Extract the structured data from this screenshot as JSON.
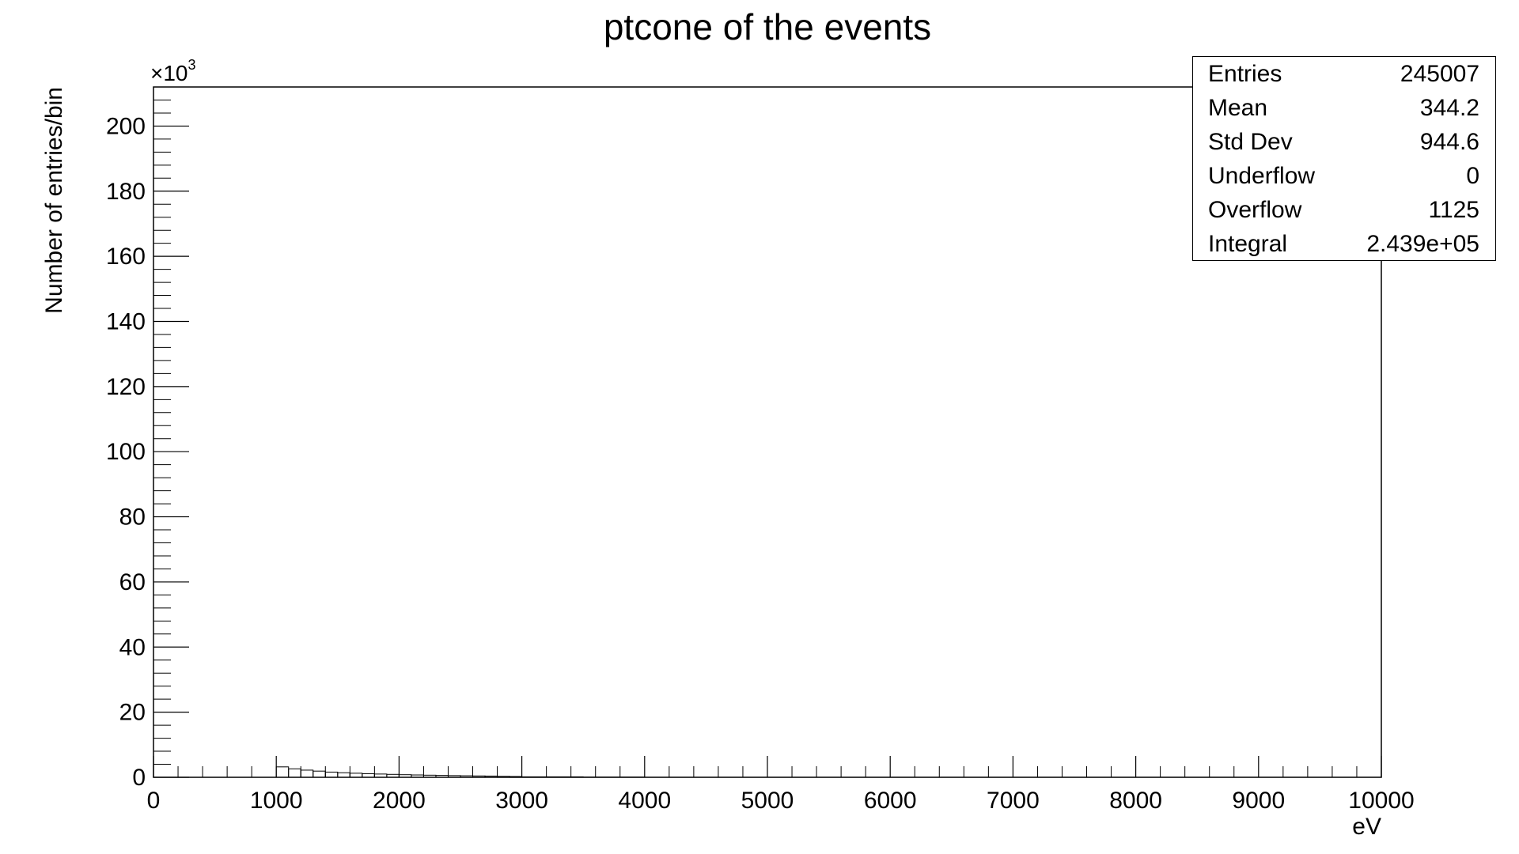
{
  "chart_data": {
    "type": "bar",
    "title": "ptcone of the events",
    "xlabel": "eV",
    "ylabel": "Number of entries/bin",
    "y_multiplier_label": "×10",
    "y_multiplier_exponent": "3",
    "xlim": [
      0,
      10000
    ],
    "ylim": [
      0,
      212
    ],
    "x_ticks": [
      "0",
      "1000",
      "2000",
      "3000",
      "4000",
      "5000",
      "6000",
      "7000",
      "8000",
      "9000",
      "10000"
    ],
    "y_ticks": [
      "0",
      "20",
      "40",
      "60",
      "80",
      "100",
      "120",
      "140",
      "160",
      "180",
      "200"
    ],
    "grid": false,
    "bins": [
      {
        "x0": 0,
        "x1": 1000,
        "value": 0
      },
      {
        "x0": 1000,
        "x1": 1100,
        "value": 3.2
      },
      {
        "x0": 1100,
        "x1": 1200,
        "value": 2.6
      },
      {
        "x0": 1200,
        "x1": 1300,
        "value": 2.2
      },
      {
        "x0": 1300,
        "x1": 1400,
        "value": 1.9
      },
      {
        "x0": 1400,
        "x1": 1500,
        "value": 1.6
      },
      {
        "x0": 1500,
        "x1": 1600,
        "value": 1.4
      },
      {
        "x0": 1600,
        "x1": 1700,
        "value": 1.25
      },
      {
        "x0": 1700,
        "x1": 1800,
        "value": 1.1
      },
      {
        "x0": 1800,
        "x1": 1900,
        "value": 1.0
      },
      {
        "x0": 1900,
        "x1": 2000,
        "value": 0.9
      },
      {
        "x0": 2000,
        "x1": 2100,
        "value": 0.8
      },
      {
        "x0": 2100,
        "x1": 2200,
        "value": 0.72
      },
      {
        "x0": 2200,
        "x1": 2300,
        "value": 0.65
      },
      {
        "x0": 2300,
        "x1": 2400,
        "value": 0.58
      },
      {
        "x0": 2400,
        "x1": 2500,
        "value": 0.52
      },
      {
        "x0": 2500,
        "x1": 2600,
        "value": 0.47
      },
      {
        "x0": 2600,
        "x1": 2700,
        "value": 0.42
      },
      {
        "x0": 2700,
        "x1": 2800,
        "value": 0.38
      },
      {
        "x0": 2800,
        "x1": 2900,
        "value": 0.3
      },
      {
        "x0": 2900,
        "x1": 3000,
        "value": 0.25
      },
      {
        "x0": 3000,
        "x1": 3500,
        "value": 0.15
      },
      {
        "x0": 3500,
        "x1": 4000,
        "value": 0.08
      },
      {
        "x0": 4000,
        "x1": 10000,
        "value": 0.02
      }
    ],
    "stats": [
      {
        "label": "Entries",
        "value": "245007"
      },
      {
        "label": "Mean",
        "value": "344.2"
      },
      {
        "label": "Std Dev",
        "value": "944.6"
      },
      {
        "label": "Underflow",
        "value": "0"
      },
      {
        "label": "Overflow",
        "value": "1125"
      },
      {
        "label": "Integral",
        "value": "2.439e+05"
      }
    ]
  }
}
